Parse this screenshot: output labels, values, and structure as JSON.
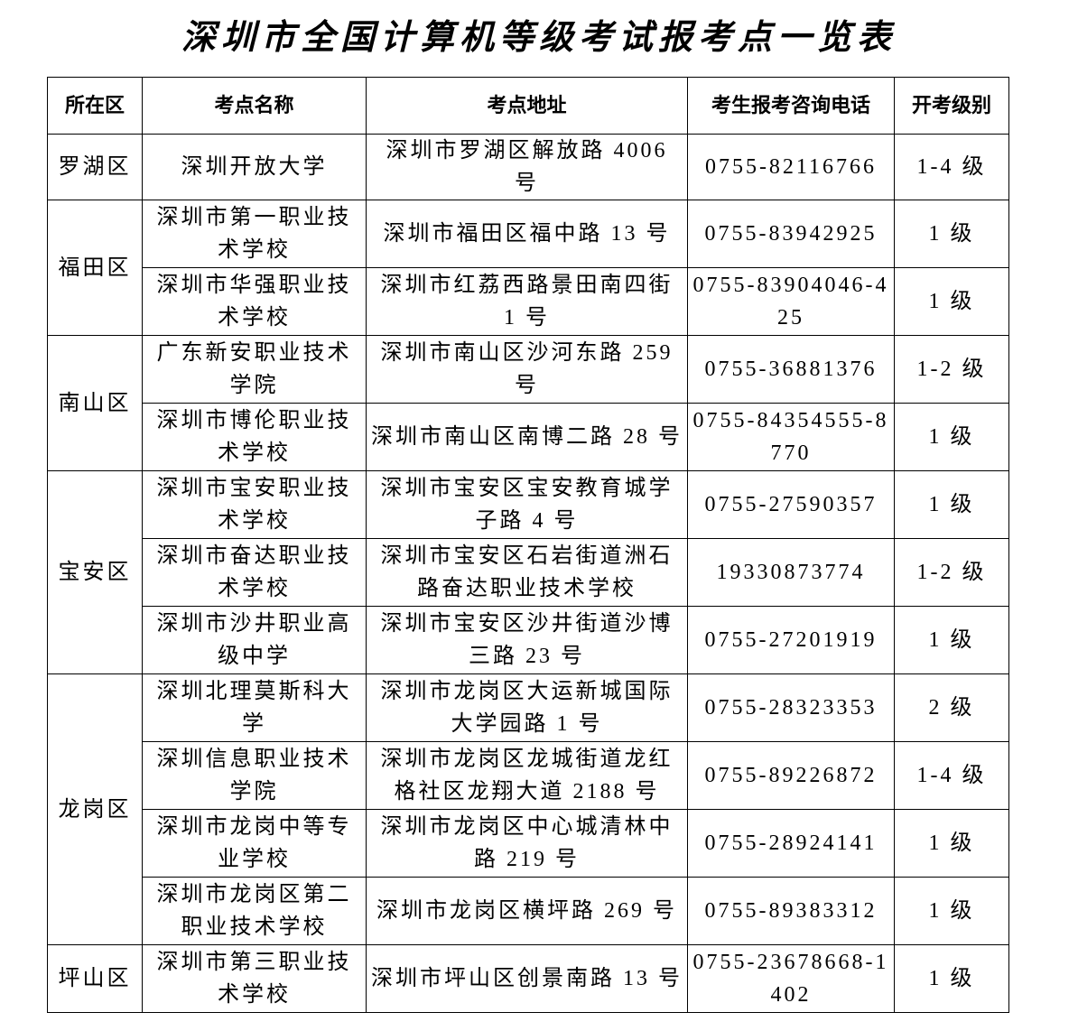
{
  "title": "深圳市全国计算机等级考试报考点一览表",
  "table": {
    "header": [
      "所在区",
      "考点名称",
      "考点地址",
      "考生报考咨询电话",
      "开考级别"
    ],
    "groups": [
      {
        "district": "罗湖区",
        "sites": [
          {
            "name": "深圳开放大学",
            "address": "深圳市罗湖区解放路 4006 号",
            "phone": "0755-82116766",
            "level": "1-4 级"
          }
        ]
      },
      {
        "district": "福田区",
        "sites": [
          {
            "name": "深圳市第一职业技术学校",
            "address": "深圳市福田区福中路 13 号",
            "phone": "0755-83942925",
            "level": "1 级"
          },
          {
            "name": "深圳市华强职业技术学校",
            "address": "深圳市红荔西路景田南四街 1 号",
            "phone": "0755-83904046-425",
            "level": "1 级"
          }
        ]
      },
      {
        "district": "南山区",
        "sites": [
          {
            "name": "广东新安职业技术学院",
            "address": "深圳市南山区沙河东路 259 号",
            "phone": "0755-36881376",
            "level": "1-2 级"
          },
          {
            "name": "深圳市博伦职业技术学校",
            "address": "深圳市南山区南博二路 28 号",
            "phone": "0755-84354555-8770",
            "level": "1 级"
          }
        ]
      },
      {
        "district": "宝安区",
        "sites": [
          {
            "name": "深圳市宝安职业技术学校",
            "address": "深圳市宝安区宝安教育城学子路 4 号",
            "phone": "0755-27590357",
            "level": "1 级"
          },
          {
            "name": "深圳市奋达职业技术学校",
            "address": "深圳市宝安区石岩街道洲石路奋达职业技术学校",
            "phone": "19330873774",
            "level": "1-2 级"
          },
          {
            "name": "深圳市沙井职业高级中学",
            "address": "深圳市宝安区沙井街道沙博三路 23 号",
            "phone": "0755-27201919",
            "level": "1 级"
          }
        ]
      },
      {
        "district": "龙岗区",
        "sites": [
          {
            "name": "深圳北理莫斯科大学",
            "address": "深圳市龙岗区大运新城国际大学园路 1 号",
            "phone": "0755-28323353",
            "level": "2 级"
          },
          {
            "name": "深圳信息职业技术学院",
            "address": "深圳市龙岗区龙城街道龙红格社区龙翔大道 2188 号",
            "phone": "0755-89226872",
            "level": "1-4 级"
          },
          {
            "name": "深圳市龙岗中等专业学校",
            "address": "深圳市龙岗区中心城清林中路 219 号",
            "phone": "0755-28924141",
            "level": "1 级"
          },
          {
            "name": "深圳市龙岗区第二职业技术学校",
            "address": "深圳市龙岗区横坪路 269 号",
            "phone": "0755-89383312",
            "level": "1 级"
          }
        ]
      },
      {
        "district": "坪山区",
        "sites": [
          {
            "name": "深圳市第三职业技术学校",
            "address": "深圳市坪山区创景南路 13 号",
            "phone": "0755-23678668-1402",
            "level": "1 级"
          }
        ]
      }
    ]
  }
}
